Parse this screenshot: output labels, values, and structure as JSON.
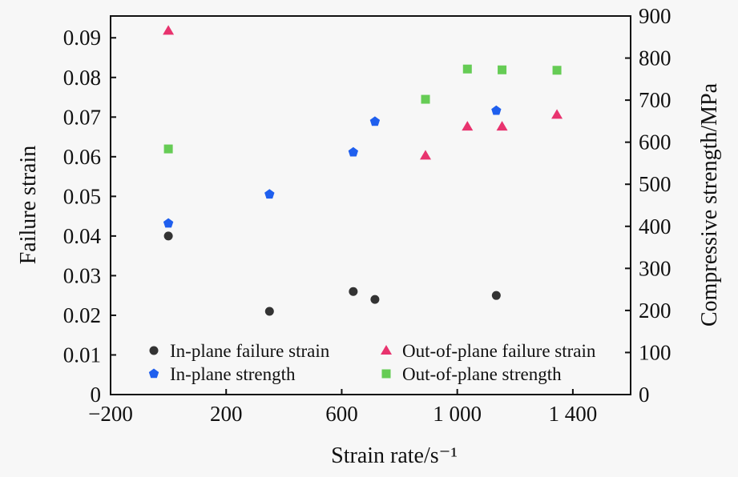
{
  "chart_data": {
    "type": "scatter",
    "xlabel": "Strain rate/s⁻¹",
    "ylabel": "Failure strain",
    "ylabel_right": "Compressive strength/MPa",
    "xlim": [
      -200,
      1600
    ],
    "ylim": [
      0,
      0.0955
    ],
    "ylim_right": [
      0,
      900
    ],
    "x_ticks": [
      -200,
      200,
      600,
      1000,
      1400
    ],
    "x_tick_labels": [
      "−200",
      "200",
      "600",
      "1 000",
      "1 400"
    ],
    "y_ticks": [
      0,
      0.01,
      0.02,
      0.03,
      0.04,
      0.05,
      0.06,
      0.07,
      0.08,
      0.09
    ],
    "y_tick_labels": [
      "0",
      "0.01",
      "0.02",
      "0.03",
      "0.04",
      "0.05",
      "0.06",
      "0.07",
      "0.08",
      "0.09"
    ],
    "y_right_ticks": [
      0,
      100,
      200,
      300,
      400,
      500,
      600,
      700,
      800,
      900
    ],
    "y_right_tick_labels": [
      "0",
      "100",
      "200",
      "300",
      "400",
      "500",
      "600",
      "700",
      "800",
      "900"
    ],
    "grid": false,
    "legend_position": "bottom-center",
    "series": [
      {
        "name": "In-plane failure strain",
        "axis": "left",
        "marker": "circle",
        "color": "#333333",
        "x": [
          0,
          350,
          640,
          715,
          1135
        ],
        "y": [
          0.04,
          0.021,
          0.026,
          0.024,
          0.025
        ]
      },
      {
        "name": "Out-of-plane failure strain",
        "axis": "left",
        "marker": "triangle",
        "color": "#e8336e",
        "x": [
          0,
          890,
          1035,
          1155,
          1345
        ],
        "y": [
          0.0918,
          0.0603,
          0.0676,
          0.0676,
          0.0706
        ]
      },
      {
        "name": "In-plane strength",
        "axis": "right",
        "marker": "pentagon",
        "color": "#1f5fee",
        "x": [
          0,
          350,
          640,
          715,
          1135
        ],
        "y": [
          407,
          476,
          576,
          649,
          675
        ]
      },
      {
        "name": "Out-of-plane strength",
        "axis": "right",
        "marker": "square",
        "color": "#66cc55",
        "x": [
          0,
          890,
          1035,
          1155,
          1345
        ],
        "y": [
          584,
          702,
          774,
          772,
          771
        ]
      }
    ]
  }
}
